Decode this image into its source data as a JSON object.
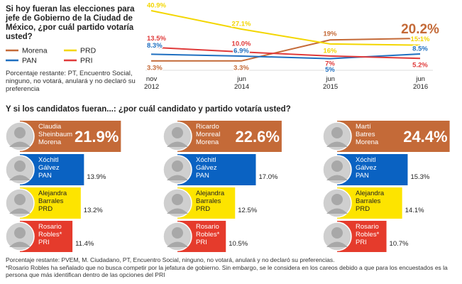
{
  "chart_data": [
    {
      "type": "line",
      "title": "Si hoy fueran las elecciones para jefe de Gobierno de la Ciudad de México, ¿por cuál partido votaría usted?",
      "note": "Porcentaje restante: PT, Encuentro Social, ninguno, no votará, anulará y no declaró su preferencia",
      "categories": [
        "nov 2012",
        "jun 2014",
        "jun 2015",
        "jun 2016"
      ],
      "series": [
        {
          "name": "Morena",
          "color": "#c46a38",
          "values": [
            3.3,
            3.3,
            19,
            20.2
          ],
          "value_labels": [
            "3.3%",
            "3.3%",
            "19%",
            "20.2%"
          ]
        },
        {
          "name": "PRD",
          "color": "#f3d600",
          "values": [
            40.9,
            27.1,
            16,
            15.1
          ],
          "value_labels": [
            "40.9%",
            "27.1%",
            "16%",
            "15.1%"
          ]
        },
        {
          "name": "PAN",
          "color": "#1f6fc0",
          "values": [
            8.3,
            6.9,
            5,
            8.5
          ],
          "value_labels": [
            "8.3%",
            "6.9%",
            "5%",
            "8.5%"
          ]
        },
        {
          "name": "PRI",
          "color": "#e03a3a",
          "values": [
            13.5,
            10.0,
            7,
            5.2
          ],
          "value_labels": [
            "13.5%",
            "10.0%",
            "7%",
            "5.2%"
          ]
        }
      ]
    },
    {
      "type": "hbar",
      "title": "Y si los candidatos fueran...: ¿por cuál candidato y partido votaría usted?",
      "panels": [
        {
          "categories": [
            "Claudia Sheinbaum",
            "Xóchitl Gálvez",
            "Alejandra Barrales",
            "Rosario Robles*"
          ],
          "parties": [
            "Morena",
            "PAN",
            "PRD",
            "PRI"
          ],
          "values": [
            21.9,
            13.9,
            13.2,
            11.4
          ],
          "value_labels": [
            "21.9%",
            "13.9%",
            "13.2%",
            "11.4%"
          ],
          "colors": [
            "#c46a38",
            "#0a62c2",
            "#fde400",
            "#e53b2c"
          ]
        },
        {
          "categories": [
            "Ricardo Monreal",
            "Xóchitl Gálvez",
            "Alejandra Barrales",
            "Rosario Robles*"
          ],
          "parties": [
            "Morena",
            "PAN",
            "PRD",
            "PRI"
          ],
          "values": [
            22.6,
            17.0,
            12.5,
            10.5
          ],
          "value_labels": [
            "22.6%",
            "17.0%",
            "12.5%",
            "10.5%"
          ],
          "colors": [
            "#c46a38",
            "#0a62c2",
            "#fde400",
            "#e53b2c"
          ]
        },
        {
          "categories": [
            "Martí Batres",
            "Xóchitl Gálvez",
            "Alejandra Barrales",
            "Rosario Robles*"
          ],
          "parties": [
            "Morena",
            "PAN",
            "PRD",
            "PRI"
          ],
          "values": [
            24.4,
            15.3,
            14.1,
            10.7
          ],
          "value_labels": [
            "24.4%",
            "15.3%",
            "14.1%",
            "10.7%"
          ],
          "colors": [
            "#c46a38",
            "#0a62c2",
            "#fde400",
            "#e53b2c"
          ]
        }
      ]
    }
  ],
  "notes": [
    "Porcentaje restante: PVEM, M. Ciudadano, PT, Encuentro Social, ninguno, no votará, anulará y no declaró su preferencias.",
    "*Rosario Robles ha señalado que no busca competir por la jefatura de gobierno. Sin embargo, se le considera en los careos debido a que para los encuestados es la persona que más identifican dentro de las opciones del PRI"
  ]
}
